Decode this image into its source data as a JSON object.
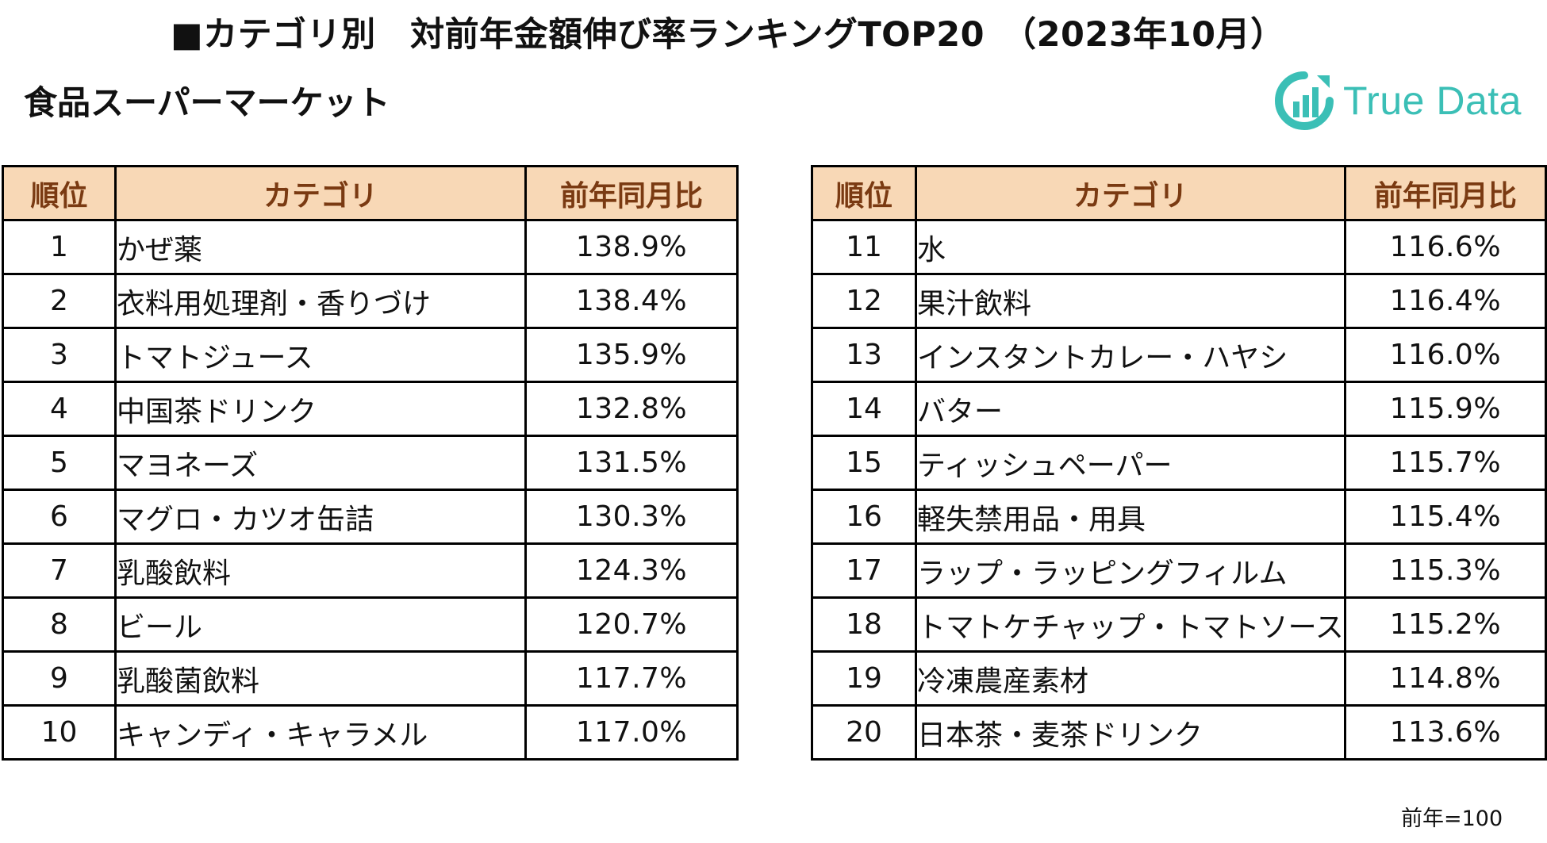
{
  "title": "■カテゴリ別　対前年金額伸び率ランキングTOP20　（2023年10月）",
  "subtitle": "食品スーパーマーケット",
  "logo": {
    "text": "True Data",
    "icon": "true-data-logo-icon"
  },
  "colors": {
    "header_bg": "#f8d8b6",
    "header_text": "#7a3a12",
    "logo_teal": "#3bbfb6",
    "border": "#000000"
  },
  "headers": {
    "rank": "順位",
    "category": "カテゴリ",
    "ratio": "前年同月比"
  },
  "left_rows": [
    {
      "rank": "1",
      "category": "かぜ薬",
      "ratio": "138.9%"
    },
    {
      "rank": "2",
      "category": "衣料用処理剤・香りづけ",
      "ratio": "138.4%"
    },
    {
      "rank": "3",
      "category": "トマトジュース",
      "ratio": "135.9%"
    },
    {
      "rank": "4",
      "category": "中国茶ドリンク",
      "ratio": "132.8%"
    },
    {
      "rank": "5",
      "category": "マヨネーズ",
      "ratio": "131.5%"
    },
    {
      "rank": "6",
      "category": "マグロ・カツオ缶詰",
      "ratio": "130.3%"
    },
    {
      "rank": "7",
      "category": "乳酸飲料",
      "ratio": "124.3%"
    },
    {
      "rank": "8",
      "category": "ビール",
      "ratio": "120.7%"
    },
    {
      "rank": "9",
      "category": "乳酸菌飲料",
      "ratio": "117.7%"
    },
    {
      "rank": "10",
      "category": "キャンディ・キャラメル",
      "ratio": "117.0%"
    }
  ],
  "right_rows": [
    {
      "rank": "11",
      "category": "水",
      "ratio": "116.6%"
    },
    {
      "rank": "12",
      "category": "果汁飲料",
      "ratio": "116.4%"
    },
    {
      "rank": "13",
      "category": "インスタントカレー・ハヤシ",
      "ratio": "116.0%"
    },
    {
      "rank": "14",
      "category": "バター",
      "ratio": "115.9%"
    },
    {
      "rank": "15",
      "category": "ティッシュペーパー",
      "ratio": "115.7%"
    },
    {
      "rank": "16",
      "category": "軽失禁用品・用具",
      "ratio": "115.4%"
    },
    {
      "rank": "17",
      "category": "ラップ・ラッピングフィルム",
      "ratio": "115.3%"
    },
    {
      "rank": "18",
      "category": "トマトケチャップ・トマトソース",
      "ratio": "115.2%"
    },
    {
      "rank": "19",
      "category": "冷凍農産素材",
      "ratio": "114.8%"
    },
    {
      "rank": "20",
      "category": "日本茶・麦茶ドリンク",
      "ratio": "113.6%"
    }
  ],
  "note": "前年=100"
}
